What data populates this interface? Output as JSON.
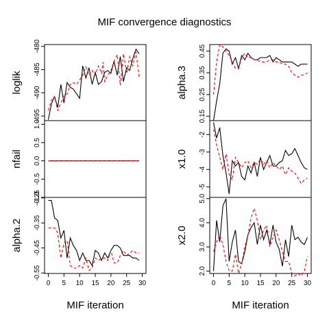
{
  "title": "MIF convergence diagnostics",
  "xlabel": "MIF iteration",
  "colors": {
    "series1": "#000000",
    "series2": "#ff0000",
    "frame": "#000000"
  },
  "x_ticks": [
    0,
    5,
    10,
    15,
    20,
    25,
    30
  ],
  "chart_data": [
    {
      "type": "line",
      "column": "left",
      "panel": "loglik",
      "ylabel": "loglik",
      "ylim": [
        -496,
        -479.6
      ],
      "y_ticks": [
        {
          "value": -480,
          "label": "-480"
        },
        {
          "value": -485,
          "label": "-485"
        },
        {
          "value": -490,
          "label": "-490"
        },
        {
          "value": -495,
          "label": "-495"
        }
      ],
      "x": [
        0,
        1,
        2,
        3,
        4,
        5,
        6,
        7,
        8,
        9,
        10,
        11,
        12,
        13,
        14,
        15,
        16,
        17,
        17.5,
        18,
        19,
        20,
        21,
        22,
        23,
        24,
        25,
        26,
        27,
        28,
        29
      ],
      "series": [
        {
          "values": [
            -495.8,
            -492.4,
            -490.8,
            -493.2,
            -488.2,
            -492.2,
            -487.8,
            -488.8,
            -489.2,
            -490.2,
            -491.2,
            -484.2,
            -486.8,
            -484.6,
            -488.2,
            -485.6,
            -488.2,
            -487.6,
            -486.6,
            -485.6,
            -485.2,
            -485.8,
            -483.2,
            -486.2,
            -482.2,
            -487.6,
            -484.6,
            -485.2,
            -482.6,
            -480.6,
            -481.6
          ]
        },
        {
          "values": [
            -493.8,
            -491.6,
            -490.8,
            -493.8,
            -492.2,
            -490.6,
            -490.2,
            -488.2,
            -487.8,
            -488.2,
            -487.2,
            -486.2,
            -484.4,
            -486.2,
            -485.2,
            -486.2,
            -484.2,
            -485.8,
            -483.4,
            -487.6,
            -486.2,
            -485.2,
            -483.2,
            -481.8,
            -488.4,
            -481.6,
            -485.8,
            -482.2,
            -484.2,
            -481.2,
            -486.6
          ]
        }
      ]
    },
    {
      "type": "line",
      "column": "left",
      "panel": "nfail",
      "ylabel": "nfail",
      "ylim": [
        -1.0,
        1.1
      ],
      "y_ticks": [
        {
          "value": 1.0,
          "label": "1.0"
        },
        {
          "value": 0.5,
          "label": "0.5"
        },
        {
          "value": 0.0,
          "label": "0.0"
        },
        {
          "value": -0.5,
          "label": "-0.5"
        },
        {
          "value": -1.0,
          "label": "-1.0"
        }
      ],
      "x": [
        0,
        29
      ],
      "series": [
        {
          "values": [
            0,
            0
          ]
        },
        {
          "values": [
            0,
            0
          ]
        }
      ]
    },
    {
      "type": "line",
      "column": "left",
      "panel": "alpha.2",
      "ylabel": "alpha.2",
      "ylim": [
        -0.552,
        -0.248
      ],
      "y_ticks": [
        {
          "value": -0.25,
          "label": "-0.25"
        },
        {
          "value": -0.35,
          "label": "-0.35"
        },
        {
          "value": -0.45,
          "label": "-0.45"
        },
        {
          "value": -0.55,
          "label": "-0.55"
        }
      ],
      "x": [
        0,
        1,
        2,
        3,
        4,
        5,
        6,
        7,
        8,
        9,
        10,
        11,
        12,
        13,
        14,
        15,
        16,
        17,
        18,
        19,
        20,
        21,
        22,
        23,
        24,
        25,
        26,
        27,
        28,
        29
      ],
      "series": [
        {
          "values": [
            -0.26,
            -0.26,
            -0.33,
            -0.34,
            -0.41,
            -0.38,
            -0.49,
            -0.41,
            -0.44,
            -0.46,
            -0.5,
            -0.47,
            -0.5,
            -0.5,
            -0.52,
            -0.46,
            -0.47,
            -0.5,
            -0.47,
            -0.49,
            -0.46,
            -0.44,
            -0.44,
            -0.45,
            -0.48,
            -0.48,
            -0.48,
            -0.49,
            -0.49,
            -0.5
          ]
        },
        {
          "values": [
            -0.37,
            -0.37,
            -0.37,
            -0.39,
            -0.49,
            -0.43,
            -0.42,
            -0.52,
            -0.53,
            -0.53,
            -0.52,
            -0.53,
            -0.49,
            -0.54,
            -0.53,
            -0.49,
            -0.5,
            -0.49,
            -0.49,
            -0.5,
            -0.46,
            -0.51,
            -0.51,
            -0.48,
            -0.46,
            -0.48,
            -0.47,
            -0.46,
            -0.47,
            -0.47
          ]
        }
      ]
    },
    {
      "type": "line",
      "column": "right",
      "panel": "alpha.3",
      "ylabel": "alpha.3",
      "ylim": [
        0.13,
        0.48
      ],
      "y_ticks": [
        {
          "value": 0.15,
          "label": "0.15"
        },
        {
          "value": 0.25,
          "label": "0.25"
        },
        {
          "value": 0.35,
          "label": "0.35"
        },
        {
          "value": 0.45,
          "label": "0.45"
        }
      ],
      "x": [
        0,
        1,
        2,
        3,
        4,
        5,
        6,
        7,
        8,
        9,
        10,
        11,
        12,
        13,
        14,
        15,
        16,
        17,
        18,
        19,
        20,
        21,
        22,
        23,
        24,
        25,
        26,
        27,
        28,
        29,
        30
      ],
      "series": [
        {
          "values": [
            0.13,
            0.22,
            0.3,
            0.44,
            0.46,
            0.45,
            0.39,
            0.42,
            0.37,
            0.43,
            0.41,
            0.44,
            0.42,
            0.41,
            0.41,
            0.42,
            0.42,
            0.42,
            0.43,
            0.4,
            0.42,
            0.41,
            0.4,
            0.4,
            0.4,
            0.4,
            0.39,
            0.38,
            0.39,
            0.39,
            0.39
          ]
        },
        {
          "values": [
            0.25,
            0.4,
            0.48,
            0.47,
            0.45,
            0.43,
            0.4,
            0.37,
            0.37,
            0.42,
            0.44,
            0.42,
            0.42,
            0.41,
            0.41,
            0.4,
            0.4,
            0.4,
            0.41,
            0.41,
            0.4,
            0.4,
            0.39,
            0.39,
            0.38,
            0.35,
            0.34,
            0.33,
            0.34,
            0.34,
            0.35
          ]
        }
      ]
    },
    {
      "type": "line",
      "column": "right",
      "panel": "x1.0",
      "ylabel": "x1.0",
      "ylim": [
        -5.6,
        -1.2
      ],
      "y_ticks": [
        {
          "value": -2,
          "label": "-2"
        },
        {
          "value": -3,
          "label": "-3"
        },
        {
          "value": -4,
          "label": "-4"
        },
        {
          "value": -5,
          "label": "-5"
        }
      ],
      "x": [
        0,
        1,
        2,
        3,
        4,
        5,
        6,
        7,
        8,
        9,
        10,
        11,
        12,
        13,
        14,
        15,
        16,
        17,
        18,
        19,
        20,
        21,
        22,
        23,
        24,
        25,
        26,
        27,
        28,
        29,
        30
      ],
      "series": [
        {
          "values": [
            -1.3,
            -2.2,
            -1.6,
            -3.2,
            -4.2,
            -5.4,
            -3.5,
            -3.8,
            -3.6,
            -4.4,
            -4.6,
            -3.8,
            -4.2,
            -3.6,
            -4.4,
            -3.3,
            -4.0,
            -3.6,
            -3.2,
            -3.8,
            -3.8,
            -3.6,
            -3.5,
            -2.9,
            -3.2,
            -3.1,
            -2.8,
            -3.2,
            -3.6,
            -3.9,
            -4.0
          ]
        },
        {
          "values": [
            -1.7,
            -2.6,
            -3.3,
            -4.0,
            -3.1,
            -4.3,
            -4.6,
            -3.3,
            -3.6,
            -3.9,
            -3.6,
            -3.5,
            -3.9,
            -3.6,
            -3.7,
            -3.4,
            -3.7,
            -3.5,
            -3.9,
            -3.6,
            -3.8,
            -4.0,
            -3.8,
            -4.3,
            -3.9,
            -4.1,
            -4.2,
            -4.5,
            -4.8,
            -4.6,
            -4.5
          ]
        }
      ]
    },
    {
      "type": "line",
      "column": "right",
      "panel": "x2.0",
      "ylabel": "x2.0",
      "ylim": [
        1.9,
        5.05
      ],
      "y_ticks": [
        {
          "value": 2.0,
          "label": "2.0"
        },
        {
          "value": 3.0,
          "label": "3.0"
        },
        {
          "value": 4.0,
          "label": "4.0"
        },
        {
          "value": 5.0,
          "label": "5.0"
        }
      ],
      "x": [
        0,
        1,
        2,
        3,
        4,
        5,
        6,
        7,
        8,
        9,
        10,
        11,
        12,
        13,
        14,
        15,
        16,
        17,
        18,
        19,
        20,
        21,
        22,
        23,
        24,
        25,
        26,
        27,
        28,
        29,
        30
      ],
      "series": [
        {
          "values": [
            2.0,
            4.1,
            3.2,
            4.7,
            5.0,
            2.4,
            3.2,
            3.7,
            2.4,
            2.3,
            2.8,
            3.5,
            3.8,
            4.0,
            3.1,
            3.9,
            3.3,
            3.7,
            3.1,
            3.9,
            3.2,
            2.9,
            2.2,
            3.3,
            2.6,
            3.9,
            3.3,
            3.4,
            3.2,
            3.1,
            3.4
          ]
        },
        {
          "values": [
            2.8,
            3.2,
            3.5,
            3.1,
            2.4,
            2.0,
            2.0,
            2.7,
            1.9,
            2.3,
            3.0,
            3.5,
            4.2,
            4.6,
            4.1,
            3.3,
            3.7,
            3.9,
            3.0,
            3.4,
            3.7,
            3.3,
            2.8,
            2.4,
            2.4,
            1.9,
            1.8,
            1.9,
            1.8,
            2.0,
            2.6
          ]
        }
      ]
    }
  ]
}
